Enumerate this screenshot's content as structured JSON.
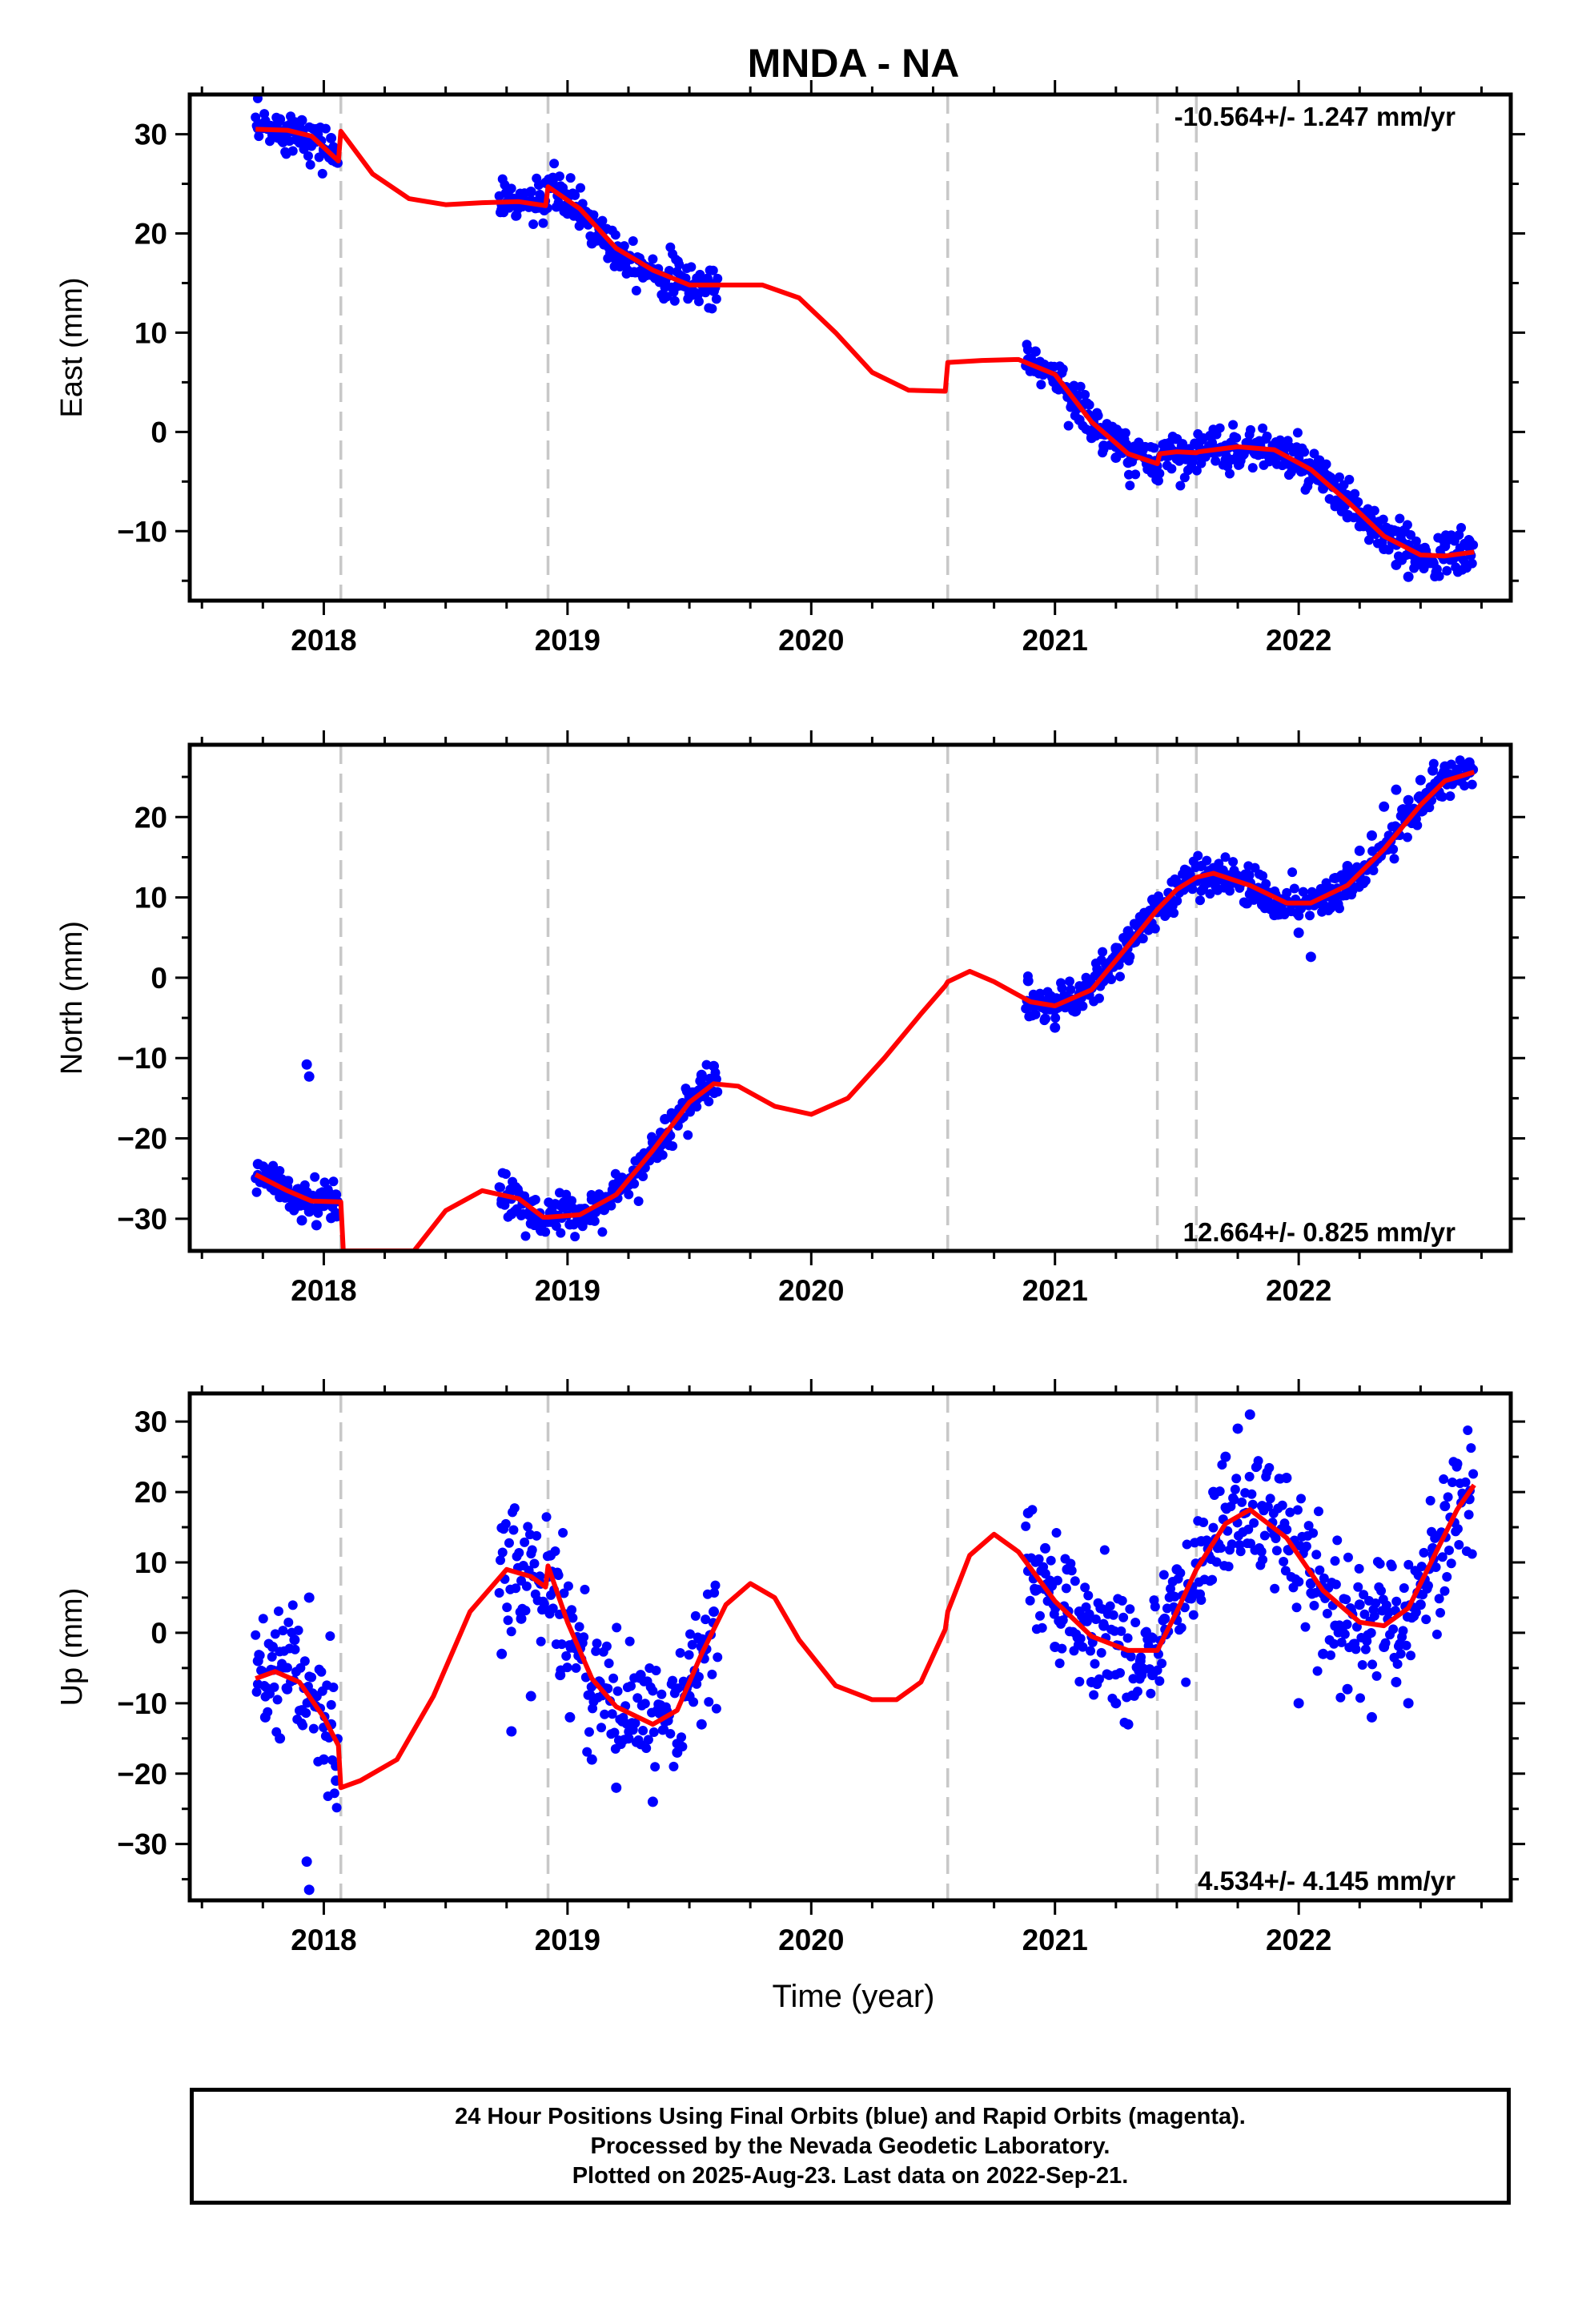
{
  "title": "MNDA - NA",
  "xlabel": "Time (year)",
  "colors": {
    "final_orbits": "#0000ff",
    "model": "#ff0000",
    "offsets": "#c8c8c8"
  },
  "footer": {
    "line1": "24 Hour Positions Using Final Orbits (blue) and Rapid Orbits (magenta).",
    "line2": "Processed by the Nevada Geodetic Laboratory.",
    "line3": "Plotted on 2025-Aug-23. Last data on 2022-Sep-21."
  },
  "chart_data": [
    {
      "type": "scatter",
      "component": "east",
      "ylabel": "East (mm)",
      "rate_label": "-10.564+/- 1.247 mm/yr",
      "xlim": [
        2017.45,
        2022.87
      ],
      "ylim": [
        -17,
        34
      ],
      "xticks": [
        2018,
        2019,
        2020,
        2021,
        2022
      ],
      "yticks": [
        -10,
        0,
        10,
        20,
        30
      ],
      "offset_epochs": [
        2018.07,
        2018.92,
        2020.56,
        2021.42,
        2021.58
      ],
      "data_segments": [
        [
          2017.72,
          2018.06
        ],
        [
          2018.72,
          2019.62
        ],
        [
          2020.88,
          2022.72
        ]
      ],
      "model": {
        "name": "model",
        "x": [
          2017.72,
          2017.85,
          2017.95,
          2018.06,
          2018.07,
          2018.2,
          2018.35,
          2018.5,
          2018.65,
          2018.8,
          2018.91,
          2018.92,
          2019.05,
          2019.2,
          2019.35,
          2019.5,
          2019.62,
          2019.8,
          2019.95,
          2020.1,
          2020.25,
          2020.4,
          2020.55,
          2020.56,
          2020.7,
          2020.85,
          2021.0,
          2021.15,
          2021.3,
          2021.42,
          2021.43,
          2021.5,
          2021.58,
          2021.59,
          2021.75,
          2021.9,
          2022.05,
          2022.2,
          2022.35,
          2022.5,
          2022.6,
          2022.72
        ],
        "y": [
          30.5,
          30.4,
          29.8,
          27.3,
          30.3,
          26.0,
          23.5,
          22.9,
          23.1,
          23.2,
          22.8,
          24.7,
          22.5,
          18.5,
          16.3,
          14.8,
          14.8,
          14.8,
          13.5,
          10.0,
          6.0,
          4.2,
          4.1,
          7.0,
          7.2,
          7.3,
          5.8,
          1.0,
          -2.2,
          -3.2,
          -2.2,
          -2.0,
          -2.1,
          -2.0,
          -1.5,
          -1.8,
          -3.8,
          -7.0,
          -10.5,
          -12.4,
          -12.5,
          -12.1
        ]
      },
      "observations": {
        "name": "Final Orbits",
        "x": [
          2017.73,
          2017.76,
          2017.79,
          2017.82,
          2017.85,
          2017.88,
          2017.91,
          2017.94,
          2017.97,
          2018.0,
          2018.03,
          2018.05,
          2018.73,
          2018.76,
          2018.79,
          2018.82,
          2018.85,
          2018.88,
          2018.91,
          2018.94,
          2018.97,
          2019.0,
          2019.05,
          2019.1,
          2019.15,
          2019.2,
          2019.25,
          2019.3,
          2019.35,
          2019.4,
          2019.45,
          2019.5,
          2019.55,
          2019.6,
          2020.89,
          2020.92,
          2020.96,
          2021.0,
          2021.05,
          2021.1,
          2021.15,
          2021.2,
          2021.25,
          2021.3,
          2021.35,
          2021.4,
          2021.45,
          2021.5,
          2021.55,
          2021.6,
          2021.65,
          2021.7,
          2021.75,
          2021.8,
          2021.85,
          2021.9,
          2021.95,
          2022.0,
          2022.05,
          2022.1,
          2022.15,
          2022.2,
          2022.25,
          2022.3,
          2022.35,
          2022.4,
          2022.45,
          2022.5,
          2022.55,
          2022.6,
          2022.65,
          2022.7
        ],
        "y": [
          30.6,
          31.2,
          29.9,
          31.5,
          30.8,
          30.2,
          31.4,
          29.2,
          30.5,
          28.4,
          29.6,
          27.9,
          22.4,
          23.7,
          21.8,
          23.0,
          24.2,
          22.6,
          25.1,
          25.6,
          23.9,
          22.0,
          21.6,
          19.0,
          18.9,
          17.3,
          17.6,
          16.2,
          16.4,
          15.2,
          14.7,
          14.0,
          15.1,
          14.2,
          7.3,
          8.1,
          6.2,
          5.1,
          4.4,
          1.2,
          -0.6,
          -1.4,
          -2.6,
          -3.1,
          -2.2,
          -3.6,
          -2.0,
          -2.7,
          -1.9,
          -0.8,
          -2.1,
          -1.4,
          -2.4,
          -1.2,
          -2.2,
          -1.6,
          -2.8,
          -3.3,
          -3.9,
          -5.7,
          -7.2,
          -8.6,
          -9.5,
          -10.2,
          -11.8,
          -13.4,
          -14.6,
          -12.6,
          -13.1,
          -11.5,
          -12.3,
          -11.0
        ]
      }
    },
    {
      "type": "scatter",
      "component": "north",
      "ylabel": "North (mm)",
      "rate_label": "12.664+/- 0.825 mm/yr",
      "xlim": [
        2017.45,
        2022.87
      ],
      "ylim": [
        -34,
        29
      ],
      "xticks": [
        2018,
        2019,
        2020,
        2021,
        2022
      ],
      "yticks": [
        -30,
        -20,
        -10,
        0,
        10,
        20
      ],
      "offset_epochs": [
        2018.07,
        2018.92,
        2020.56,
        2021.42,
        2021.58
      ],
      "data_segments": [
        [
          2017.72,
          2018.06
        ],
        [
          2018.72,
          2019.62
        ],
        [
          2020.88,
          2022.72
        ]
      ],
      "model": {
        "name": "model",
        "x": [
          2017.72,
          2017.85,
          2017.95,
          2018.06,
          2018.07,
          2018.08,
          2018.37,
          2018.5,
          2018.65,
          2018.8,
          2018.9,
          2018.92,
          2019.05,
          2019.2,
          2019.35,
          2019.5,
          2019.6,
          2019.7,
          2019.85,
          2020.0,
          2020.15,
          2020.3,
          2020.45,
          2020.55,
          2020.56,
          2020.65,
          2020.75,
          2020.9,
          2021.0,
          2021.15,
          2021.3,
          2021.42,
          2021.5,
          2021.58,
          2021.65,
          2021.8,
          2021.95,
          2022.05,
          2022.2,
          2022.35,
          2022.5,
          2022.6,
          2022.72
        ],
        "y": [
          -24.5,
          -26.5,
          -27.8,
          -27.9,
          -27.9,
          -34.0,
          -34.0,
          -29.0,
          -26.5,
          -27.5,
          -29.8,
          -29.8,
          -29.5,
          -27.0,
          -21.5,
          -15.5,
          -13.2,
          -13.5,
          -16.0,
          -17.0,
          -15.0,
          -10.0,
          -4.5,
          -1.0,
          -0.5,
          0.8,
          -0.5,
          -3.0,
          -3.5,
          -1.5,
          4.0,
          8.5,
          11.0,
          12.5,
          13.0,
          11.5,
          9.3,
          9.3,
          11.5,
          16.0,
          21.5,
          24.5,
          25.6
        ]
      },
      "observations": {
        "name": "Final Orbits",
        "x": [
          2017.73,
          2017.76,
          2017.79,
          2017.82,
          2017.85,
          2017.88,
          2017.91,
          2017.94,
          2017.97,
          2018.0,
          2018.03,
          2018.05,
          2017.93,
          2017.94,
          2018.73,
          2018.77,
          2018.81,
          2018.85,
          2018.89,
          2018.93,
          2018.97,
          2019.01,
          2019.05,
          2019.1,
          2019.15,
          2019.2,
          2019.25,
          2019.3,
          2019.35,
          2019.4,
          2019.45,
          2019.5,
          2019.55,
          2019.6,
          2020.89,
          2020.92,
          2020.96,
          2021.0,
          2021.05,
          2021.1,
          2021.15,
          2021.2,
          2021.25,
          2021.3,
          2021.35,
          2021.4,
          2021.45,
          2021.5,
          2021.55,
          2021.6,
          2021.65,
          2021.7,
          2021.75,
          2021.8,
          2021.85,
          2021.9,
          2021.95,
          2022.0,
          2022.05,
          2022.1,
          2022.15,
          2022.2,
          2022.25,
          2022.3,
          2022.35,
          2022.4,
          2022.45,
          2022.5,
          2022.55,
          2022.6,
          2022.65,
          2022.7
        ],
        "y": [
          -23.2,
          -25.4,
          -24.0,
          -27.3,
          -26.0,
          -28.7,
          -30.2,
          -29.1,
          -30.8,
          -28.4,
          -29.9,
          -27.0,
          -10.8,
          -12.3,
          -28.1,
          -29.4,
          -27.2,
          -30.6,
          -31.4,
          -29.5,
          -28.3,
          -30.7,
          -28.8,
          -27.6,
          -28.9,
          -26.1,
          -25.8,
          -22.3,
          -20.5,
          -17.6,
          -16.9,
          -14.8,
          -12.1,
          -11.0,
          -0.4,
          -2.6,
          -5.1,
          -6.2,
          -2.8,
          -2.1,
          -1.3,
          0.6,
          3.7,
          5.8,
          6.1,
          9.7,
          9.4,
          11.8,
          12.6,
          13.9,
          13.2,
          12.1,
          11.7,
          10.4,
          9.1,
          7.8,
          9.6,
          5.6,
          2.6,
          10.7,
          12.4,
          13.9,
          15.8,
          17.7,
          21.3,
          23.4,
          22.1,
          24.6,
          25.8,
          26.3,
          25.9,
          26.8
        ]
      }
    },
    {
      "type": "scatter",
      "component": "up",
      "ylabel": "Up (mm)",
      "rate_label": "4.534+/- 4.145 mm/yr",
      "xlim": [
        2017.45,
        2022.87
      ],
      "ylim": [
        -38,
        34
      ],
      "xticks": [
        2018,
        2019,
        2020,
        2021,
        2022
      ],
      "yticks": [
        -30,
        -20,
        -10,
        0,
        10,
        20,
        30
      ],
      "offset_epochs": [
        2018.07,
        2018.92,
        2020.56,
        2021.42,
        2021.58
      ],
      "data_segments": [
        [
          2017.72,
          2018.06
        ],
        [
          2018.72,
          2019.62
        ],
        [
          2020.88,
          2022.72
        ]
      ],
      "model": {
        "name": "model",
        "x": [
          2017.72,
          2017.8,
          2017.9,
          2018.0,
          2018.06,
          2018.07,
          2018.15,
          2018.3,
          2018.45,
          2018.6,
          2018.75,
          2018.85,
          2018.91,
          2018.92,
          2019.0,
          2019.1,
          2019.2,
          2019.35,
          2019.45,
          2019.55,
          2019.65,
          2019.75,
          2019.85,
          2019.95,
          2020.1,
          2020.25,
          2020.35,
          2020.45,
          2020.55,
          2020.56,
          2020.65,
          2020.75,
          2020.85,
          2021.0,
          2021.15,
          2021.3,
          2021.42,
          2021.5,
          2021.58,
          2021.7,
          2021.8,
          2021.95,
          2022.1,
          2022.25,
          2022.35,
          2022.45,
          2022.55,
          2022.65,
          2022.72
        ],
        "y": [
          -6.5,
          -5.5,
          -7.0,
          -12.0,
          -16.0,
          -22.0,
          -21.0,
          -18.0,
          -9.0,
          3.0,
          9.0,
          8.0,
          6.5,
          9.5,
          1.5,
          -6.5,
          -10.5,
          -13.0,
          -11.0,
          -3.0,
          4.0,
          7.0,
          5.0,
          -1.0,
          -7.5,
          -9.5,
          -9.5,
          -7.0,
          0.5,
          3.0,
          11.0,
          14.0,
          11.5,
          4.5,
          -0.5,
          -2.5,
          -2.5,
          3.0,
          9.0,
          15.5,
          17.5,
          13.5,
          6.0,
          1.5,
          1.0,
          3.5,
          10.5,
          17.5,
          21.0
        ]
      },
      "observations": {
        "name": "Final Orbits",
        "x": [
          2017.73,
          2017.76,
          2017.79,
          2017.82,
          2017.85,
          2017.88,
          2017.91,
          2017.94,
          2017.97,
          2018.0,
          2018.03,
          2018.05,
          2017.93,
          2017.94,
          2018.73,
          2018.77,
          2018.81,
          2018.85,
          2018.89,
          2018.93,
          2018.97,
          2019.01,
          2019.05,
          2019.1,
          2019.15,
          2019.2,
          2019.25,
          2019.3,
          2019.35,
          2019.4,
          2019.45,
          2019.5,
          2019.55,
          2019.6,
          2020.89,
          2020.92,
          2020.96,
          2021.0,
          2021.05,
          2021.1,
          2021.15,
          2021.2,
          2021.25,
          2021.3,
          2021.35,
          2021.4,
          2021.45,
          2021.5,
          2021.55,
          2021.6,
          2021.65,
          2021.7,
          2021.75,
          2021.8,
          2021.85,
          2021.9,
          2021.95,
          2022.0,
          2022.05,
          2022.1,
          2022.15,
          2022.2,
          2022.25,
          2022.3,
          2022.35,
          2022.4,
          2022.45,
          2022.5,
          2022.55,
          2022.6,
          2022.65,
          2022.7
        ],
        "y": [
          -4.0,
          -12.0,
          -2.0,
          -15.0,
          -8.0,
          -1.0,
          -11.0,
          5.0,
          -9.0,
          -18.0,
          -13.0,
          -21.0,
          -32.5,
          -36.5,
          -3.0,
          -14.0,
          2.0,
          -9.0,
          7.0,
          11.0,
          -6.0,
          -12.0,
          -2.0,
          -18.0,
          -8.0,
          -22.0,
          -15.0,
          -6.0,
          -24.0,
          -11.0,
          -17.0,
          -9.0,
          -13.0,
          3.0,
          17.0,
          6.0,
          12.0,
          -2.0,
          9.0,
          3.0,
          -7.0,
          1.0,
          -10.0,
          -13.0,
          -4.0,
          -6.0,
          2.0,
          9.0,
          5.0,
          13.0,
          20.0,
          25.0,
          29.0,
          31.0,
          18.0,
          14.0,
          22.0,
          -10.0,
          7.0,
          -3.0,
          1.0,
          -8.0,
          4.0,
          -12.0,
          -2.0,
          -7.0,
          -10.0,
          4.0,
          12.0,
          18.0,
          24.0,
          19.0
        ]
      }
    }
  ]
}
